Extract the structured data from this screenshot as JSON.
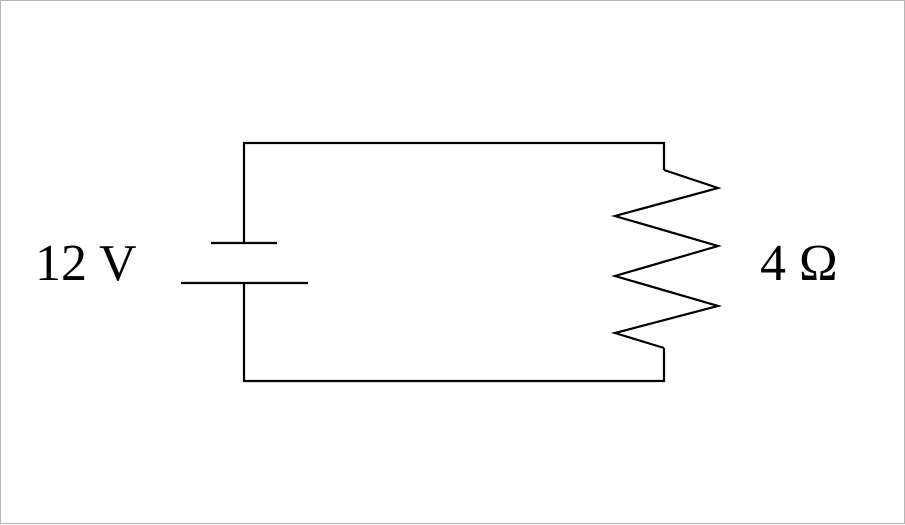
{
  "circuit": {
    "battery": {
      "voltage_label": "12 V"
    },
    "resistor": {
      "resistance_label": "4 Ω"
    }
  }
}
